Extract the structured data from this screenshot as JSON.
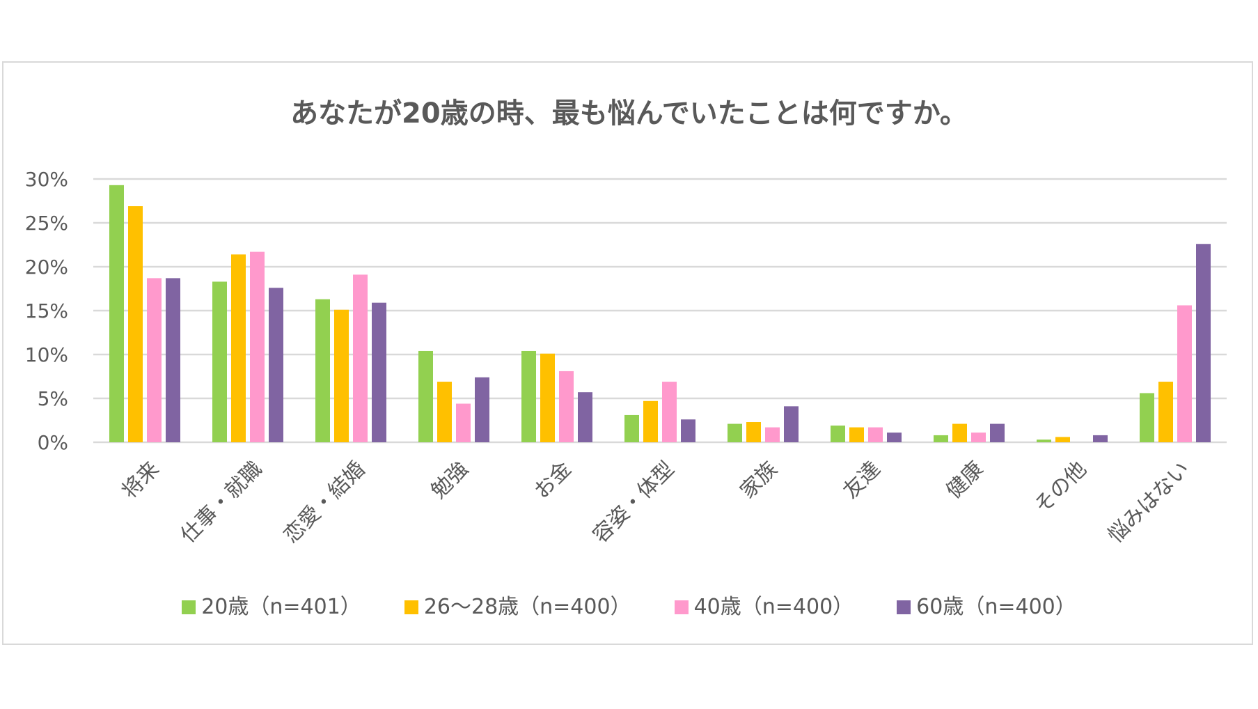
{
  "chart_data": {
    "type": "bar",
    "title": "あなたが20歳の時、最も悩んでいたことは何ですか。",
    "categories": [
      "将来",
      "仕事・就職",
      "恋愛・結婚",
      "勉強",
      "お金",
      "容姿・体型",
      "家族",
      "友達",
      "健康",
      "その他",
      "悩みはない"
    ],
    "series": [
      {
        "name": "20歳（n=401）",
        "color": "#92d050",
        "values": [
          29.3,
          18.3,
          16.3,
          10.4,
          10.4,
          3.1,
          2.1,
          1.9,
          0.8,
          0.3,
          5.6
        ]
      },
      {
        "name": "26～28歳（n=400）",
        "color": "#ffc000",
        "values": [
          26.9,
          21.4,
          15.1,
          6.9,
          10.1,
          4.7,
          2.3,
          1.7,
          2.1,
          0.6,
          6.9
        ]
      },
      {
        "name": "40歳（n=400）",
        "color": "#ff99cc",
        "values": [
          18.7,
          21.7,
          19.1,
          4.4,
          8.1,
          6.9,
          1.7,
          1.7,
          1.1,
          0,
          15.6
        ]
      },
      {
        "name": "60歳（n=400）",
        "color": "#8064a2",
        "values": [
          18.7,
          17.6,
          15.9,
          7.4,
          5.7,
          2.6,
          4.1,
          1.1,
          2.1,
          0.8,
          22.6
        ]
      }
    ],
    "yticks": [
      "0%",
      "5%",
      "10%",
      "15%",
      "20%",
      "25%",
      "30%"
    ],
    "ylim": [
      0,
      30
    ],
    "grid": true,
    "legend": "bottom"
  }
}
